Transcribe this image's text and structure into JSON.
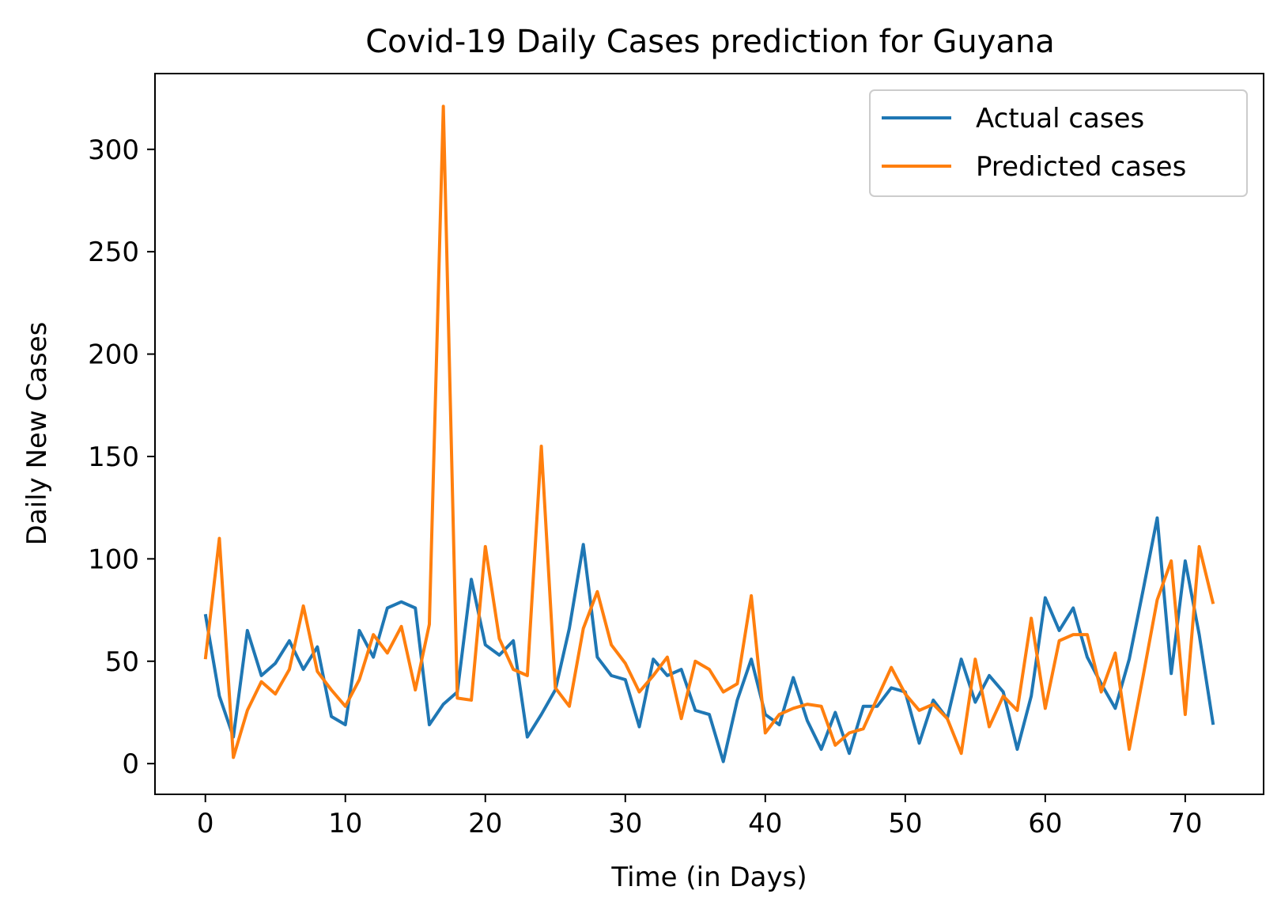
{
  "chart_data": {
    "type": "line",
    "title": "Covid-19 Daily Cases prediction for Guyana",
    "xlabel": "Time (in Days)",
    "ylabel": "Daily New Cases",
    "xlim": [
      -3.6,
      75.6
    ],
    "ylim": [
      -15,
      337
    ],
    "xticks": [
      0,
      10,
      20,
      30,
      40,
      50,
      60,
      70
    ],
    "yticks": [
      0,
      50,
      100,
      150,
      200,
      250,
      300
    ],
    "grid": false,
    "legend_position": "top-right",
    "series": [
      {
        "name": "Actual cases",
        "color": "#1f77b4",
        "values": [
          73,
          33,
          13,
          65,
          43,
          49,
          60,
          46,
          57,
          23,
          19,
          65,
          52,
          76,
          79,
          76,
          19,
          29,
          35,
          90,
          58,
          53,
          60,
          13,
          24,
          36,
          66,
          107,
          52,
          43,
          41,
          18,
          51,
          43,
          46,
          26,
          24,
          1,
          31,
          51,
          24,
          19,
          42,
          21,
          7,
          25,
          5,
          28,
          28,
          37,
          35,
          10,
          31,
          22,
          51,
          30,
          43,
          35,
          7,
          33,
          81,
          65,
          76,
          52,
          39,
          27,
          51,
          85,
          120,
          44,
          99,
          63,
          19
        ]
      },
      {
        "name": "Predicted cases",
        "color": "#ff7f0e",
        "values": [
          51,
          110,
          3,
          26,
          40,
          34,
          46,
          77,
          45,
          36,
          28,
          41,
          63,
          54,
          67,
          36,
          68,
          321,
          32,
          31,
          106,
          61,
          46,
          43,
          155,
          37,
          28,
          66,
          84,
          58,
          49,
          35,
          43,
          52,
          22,
          50,
          46,
          35,
          39,
          82,
          15,
          24,
          27,
          29,
          28,
          9,
          15,
          17,
          32,
          47,
          34,
          26,
          29,
          22,
          5,
          51,
          18,
          33,
          26,
          71,
          27,
          60,
          63,
          63,
          35,
          54,
          7,
          43,
          80,
          99,
          24,
          106,
          78
        ]
      }
    ]
  }
}
